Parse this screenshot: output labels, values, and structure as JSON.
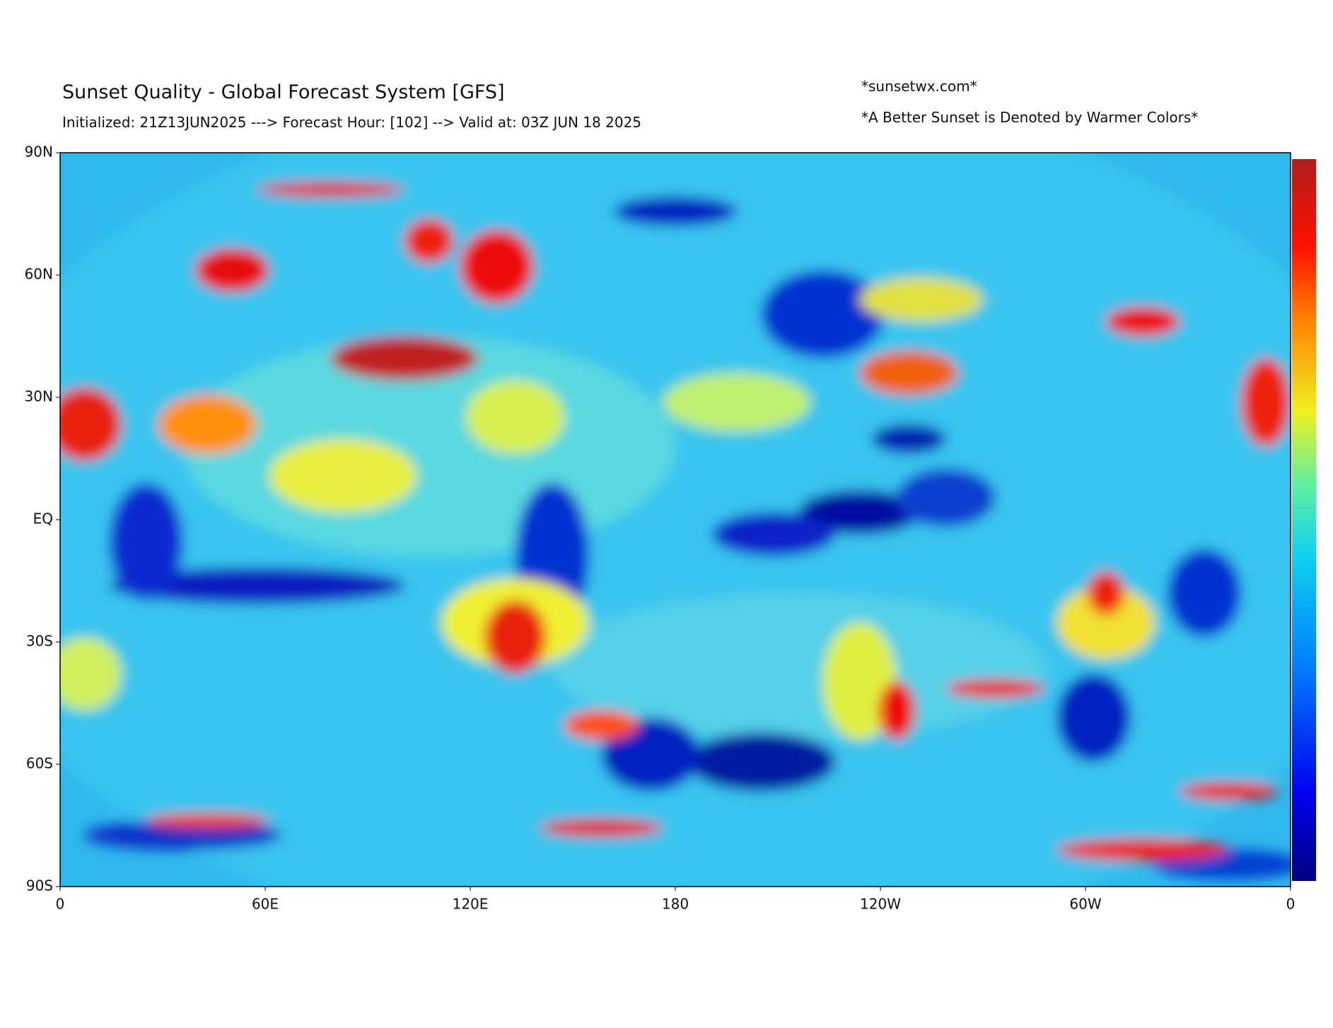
{
  "chart_data": {
    "type": "map",
    "title": "Sunset Quality - Global Forecast System [GFS]",
    "subtitle": "Initialized: 21Z13JUN2025 ---> Forecast Hour: [102] --> Valid at: 03Z JUN 18 2025",
    "annotations": [
      "*sunsetwx.com*",
      "*A Better Sunset is Denoted by Warmer Colors*"
    ],
    "xlim": [
      0,
      360
    ],
    "ylim": [
      -90,
      90
    ],
    "xticks": [
      0,
      {
        "value": 60,
        "label": "60E"
      },
      {
        "value": 120,
        "label": "120E"
      },
      180,
      {
        "value": 240,
        "label": "120W"
      },
      {
        "value": 300,
        "label": "60W"
      },
      {
        "value": 360,
        "label": "0"
      }
    ],
    "yticks": [
      {
        "value": 90,
        "label": "90N"
      },
      {
        "value": 60,
        "label": "60N"
      },
      {
        "value": 30,
        "label": "30N"
      },
      {
        "value": 0,
        "label": "EQ"
      },
      {
        "value": -30,
        "label": "30S"
      },
      {
        "value": -60,
        "label": "60S"
      },
      {
        "value": -90,
        "label": "90S"
      }
    ]
  }
}
